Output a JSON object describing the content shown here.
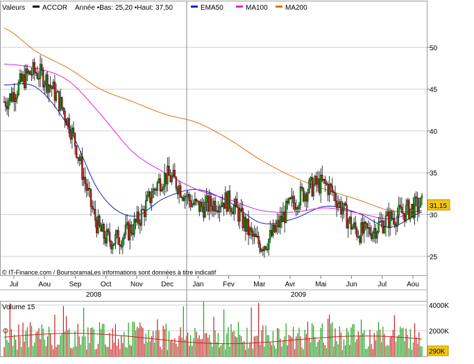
{
  "legend": {
    "label": "Valeurs",
    "items": [
      {
        "name": "ACCOR",
        "color": "#000000"
      },
      {
        "name": "Année  •Bas: 25,20 •Haut: 37,50",
        "color": null
      },
      {
        "name": "EMA50",
        "color": "#1020c0"
      },
      {
        "name": "MA100",
        "color": "#e020e0"
      },
      {
        "name": "MA200",
        "color": "#e07010"
      }
    ]
  },
  "copyright": "© IT-Finance.com / BoursoramaLes informations sont données à titre indicatif",
  "last_price_label": "31,15",
  "volume_label": "Volume 15",
  "last_volume_label": "290K",
  "colors": {
    "up": "#18a018",
    "down": "#c81e1e",
    "ema50": "#1020c0",
    "ma100": "#e020e0",
    "ma200": "#e07010",
    "volume_avg": "#c81e1e",
    "grid": "#cfcfcf",
    "price_badge": "#f4c80a"
  },
  "chart_data": [
    {
      "type": "candlestick",
      "title": "ACCOR",
      "ylim": [
        23,
        54
      ],
      "y_ticks": [
        25,
        30,
        35,
        40,
        45,
        50
      ],
      "x_tick_labels": [
        "Jul",
        "Aou",
        "Sep",
        "Oct",
        "Nov",
        "Dec",
        "Jan",
        "Fev",
        "Mar",
        "Avr",
        "Mai",
        "Jun",
        "Jul",
        "Aou"
      ],
      "year_labels": [
        "2008",
        "2009"
      ],
      "approx_monthly_close": [
        {
          "month": "Jul 2008",
          "value": 43.5
        },
        {
          "month": "Aou 2008",
          "value": 47.0
        },
        {
          "month": "Sep 2008",
          "value": 41.0
        },
        {
          "month": "Oct 2008",
          "value": 28.0
        },
        {
          "month": "Nov 2008",
          "value": 28.5
        },
        {
          "month": "Dec 2008",
          "value": 34.5
        },
        {
          "month": "Jan 2009",
          "value": 31.0
        },
        {
          "month": "Fev 2009",
          "value": 31.5
        },
        {
          "month": "Mar 2009",
          "value": 26.5
        },
        {
          "month": "Avr 2009",
          "value": 31.5
        },
        {
          "month": "Mai 2009",
          "value": 33.5
        },
        {
          "month": "Jun 2009",
          "value": 28.0
        },
        {
          "month": "Jul 2009",
          "value": 29.5
        },
        {
          "month": "Aou 2009",
          "value": 31.15
        }
      ],
      "series": [
        {
          "name": "EMA50",
          "values": [
            45.5,
            45.2,
            40.5,
            32.5,
            29.8,
            32.0,
            33.0,
            31.5,
            29.0,
            29.5,
            31.0,
            30.2,
            28.5,
            30.3
          ]
        },
        {
          "name": "MA100",
          "values": [
            48.0,
            47.5,
            46.0,
            42.0,
            37.5,
            35.0,
            33.0,
            31.8,
            30.5,
            30.3,
            30.8,
            30.2,
            29.5,
            30.5
          ]
        },
        {
          "name": "MA200",
          "values": [
            52.3,
            49.5,
            47.5,
            45.0,
            43.5,
            42.0,
            41.0,
            39.0,
            36.5,
            34.5,
            33.0,
            31.8,
            30.5,
            30.3
          ]
        }
      ]
    },
    {
      "type": "bar",
      "title": "Volume 15",
      "ylim": [
        0,
        4000
      ],
      "y_ticks": [
        "4000K",
        "2000K"
      ],
      "unit": "K",
      "last_value": 290
    }
  ]
}
